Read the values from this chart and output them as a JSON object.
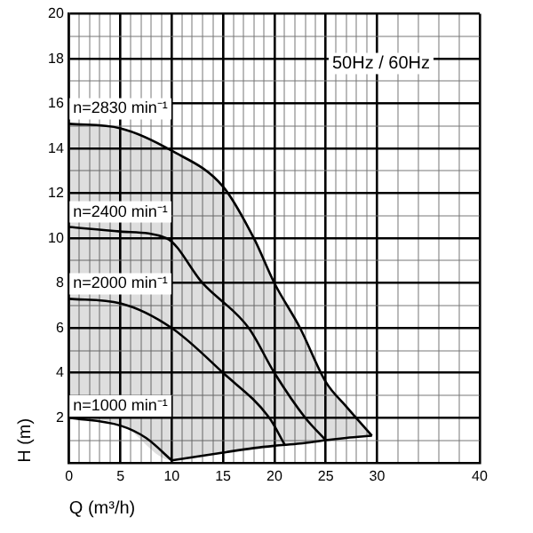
{
  "chart_data": {
    "type": "line",
    "xlabel": "Q (m³/h)",
    "ylabel": "H (m)",
    "annotations": [
      "50Hz / 60Hz"
    ],
    "xlim": [
      0,
      40
    ],
    "ylim": [
      0,
      20
    ],
    "xticks": [
      0,
      {
        "value": 1,
        "label": null
      },
      {
        "value": 2,
        "label": null
      },
      {
        "value": 3,
        "label": null
      },
      {
        "value": 4,
        "label": null
      },
      5,
      {
        "value": 6,
        "label": null
      },
      {
        "value": 7,
        "label": null
      },
      {
        "value": 8,
        "label": null
      },
      {
        "value": 9,
        "label": null
      },
      10,
      {
        "value": 11,
        "label": null
      },
      {
        "value": 12,
        "label": null
      },
      {
        "value": 13,
        "label": null
      },
      {
        "value": 14,
        "label": null
      },
      15,
      {
        "value": 16,
        "label": null
      },
      {
        "value": 17,
        "label": null
      },
      {
        "value": 18,
        "label": null
      },
      {
        "value": 19,
        "label": null
      },
      20,
      {
        "value": 21,
        "label": null
      },
      {
        "value": 22,
        "label": null
      },
      {
        "value": 23,
        "label": null
      },
      {
        "value": 24,
        "label": null
      },
      25,
      {
        "value": 26,
        "label": null
      },
      {
        "value": 27,
        "label": null
      },
      {
        "value": 28,
        "label": null
      },
      {
        "value": 29,
        "label": null
      },
      30,
      {
        "value": 32,
        "label": null
      },
      {
        "value": 34,
        "label": null
      },
      {
        "value": 36,
        "label": null
      },
      {
        "value": 38,
        "label": null
      },
      40
    ],
    "yticks": [
      {
        "value": 0,
        "label": null
      },
      {
        "value": 1,
        "label": null
      },
      2,
      {
        "value": 3,
        "label": null
      },
      4,
      {
        "value": 5,
        "label": null
      },
      6,
      {
        "value": 7,
        "label": null
      },
      8,
      {
        "value": 9,
        "label": null
      },
      10,
      {
        "value": 11,
        "label": null
      },
      12,
      {
        "value": 13,
        "label": null
      },
      14,
      {
        "value": 15,
        "label": null
      },
      16,
      {
        "value": 17,
        "label": null
      },
      18,
      {
        "value": 19,
        "label": null
      },
      20
    ],
    "grid": true,
    "legend": false,
    "marker": "none",
    "line_style": "solid",
    "series": [
      {
        "name": "n=2830 min⁻¹",
        "color": "#000000",
        "x": [
          0,
          5,
          10,
          15,
          18,
          20,
          22.5,
          25,
          27,
          29.5
        ],
        "values": [
          15.1,
          14.9,
          13.9,
          12.3,
          10,
          8,
          6,
          3.6,
          2.5,
          1.2
        ],
        "lower": [
          2,
          1.7,
          0.1,
          0.45,
          0.65,
          0.75,
          0.85,
          1,
          1.1,
          1.2
        ],
        "upper": [
          15.1,
          14.9,
          13.9,
          12.3,
          10,
          8,
          6,
          3.6,
          2.5,
          1.2
        ]
      },
      {
        "name": "n=2400 min⁻¹",
        "color": "#000000",
        "x": [
          0,
          5,
          9.5,
          13,
          17.5,
          20,
          23,
          25
        ],
        "values": [
          10.5,
          10.3,
          10,
          8,
          6,
          4,
          2,
          1
        ]
      },
      {
        "name": "n=2000 min⁻¹",
        "color": "#000000",
        "x": [
          0,
          5,
          10,
          15,
          19.5,
          21
        ],
        "values": [
          7.3,
          7.1,
          6,
          4,
          2,
          0.8
        ]
      },
      {
        "name": "n=1000 min⁻¹",
        "color": "#000000",
        "x": [
          0,
          5,
          7.5,
          10
        ],
        "values": [
          2,
          1.65,
          1.1,
          0.1
        ]
      },
      {
        "color": "#000000",
        "x": [
          10,
          15,
          18,
          20,
          22.5,
          25,
          27,
          29.5
        ],
        "values": [
          0.1,
          0.45,
          0.65,
          0.75,
          0.85,
          1,
          1.1,
          1.2
        ]
      }
    ]
  }
}
